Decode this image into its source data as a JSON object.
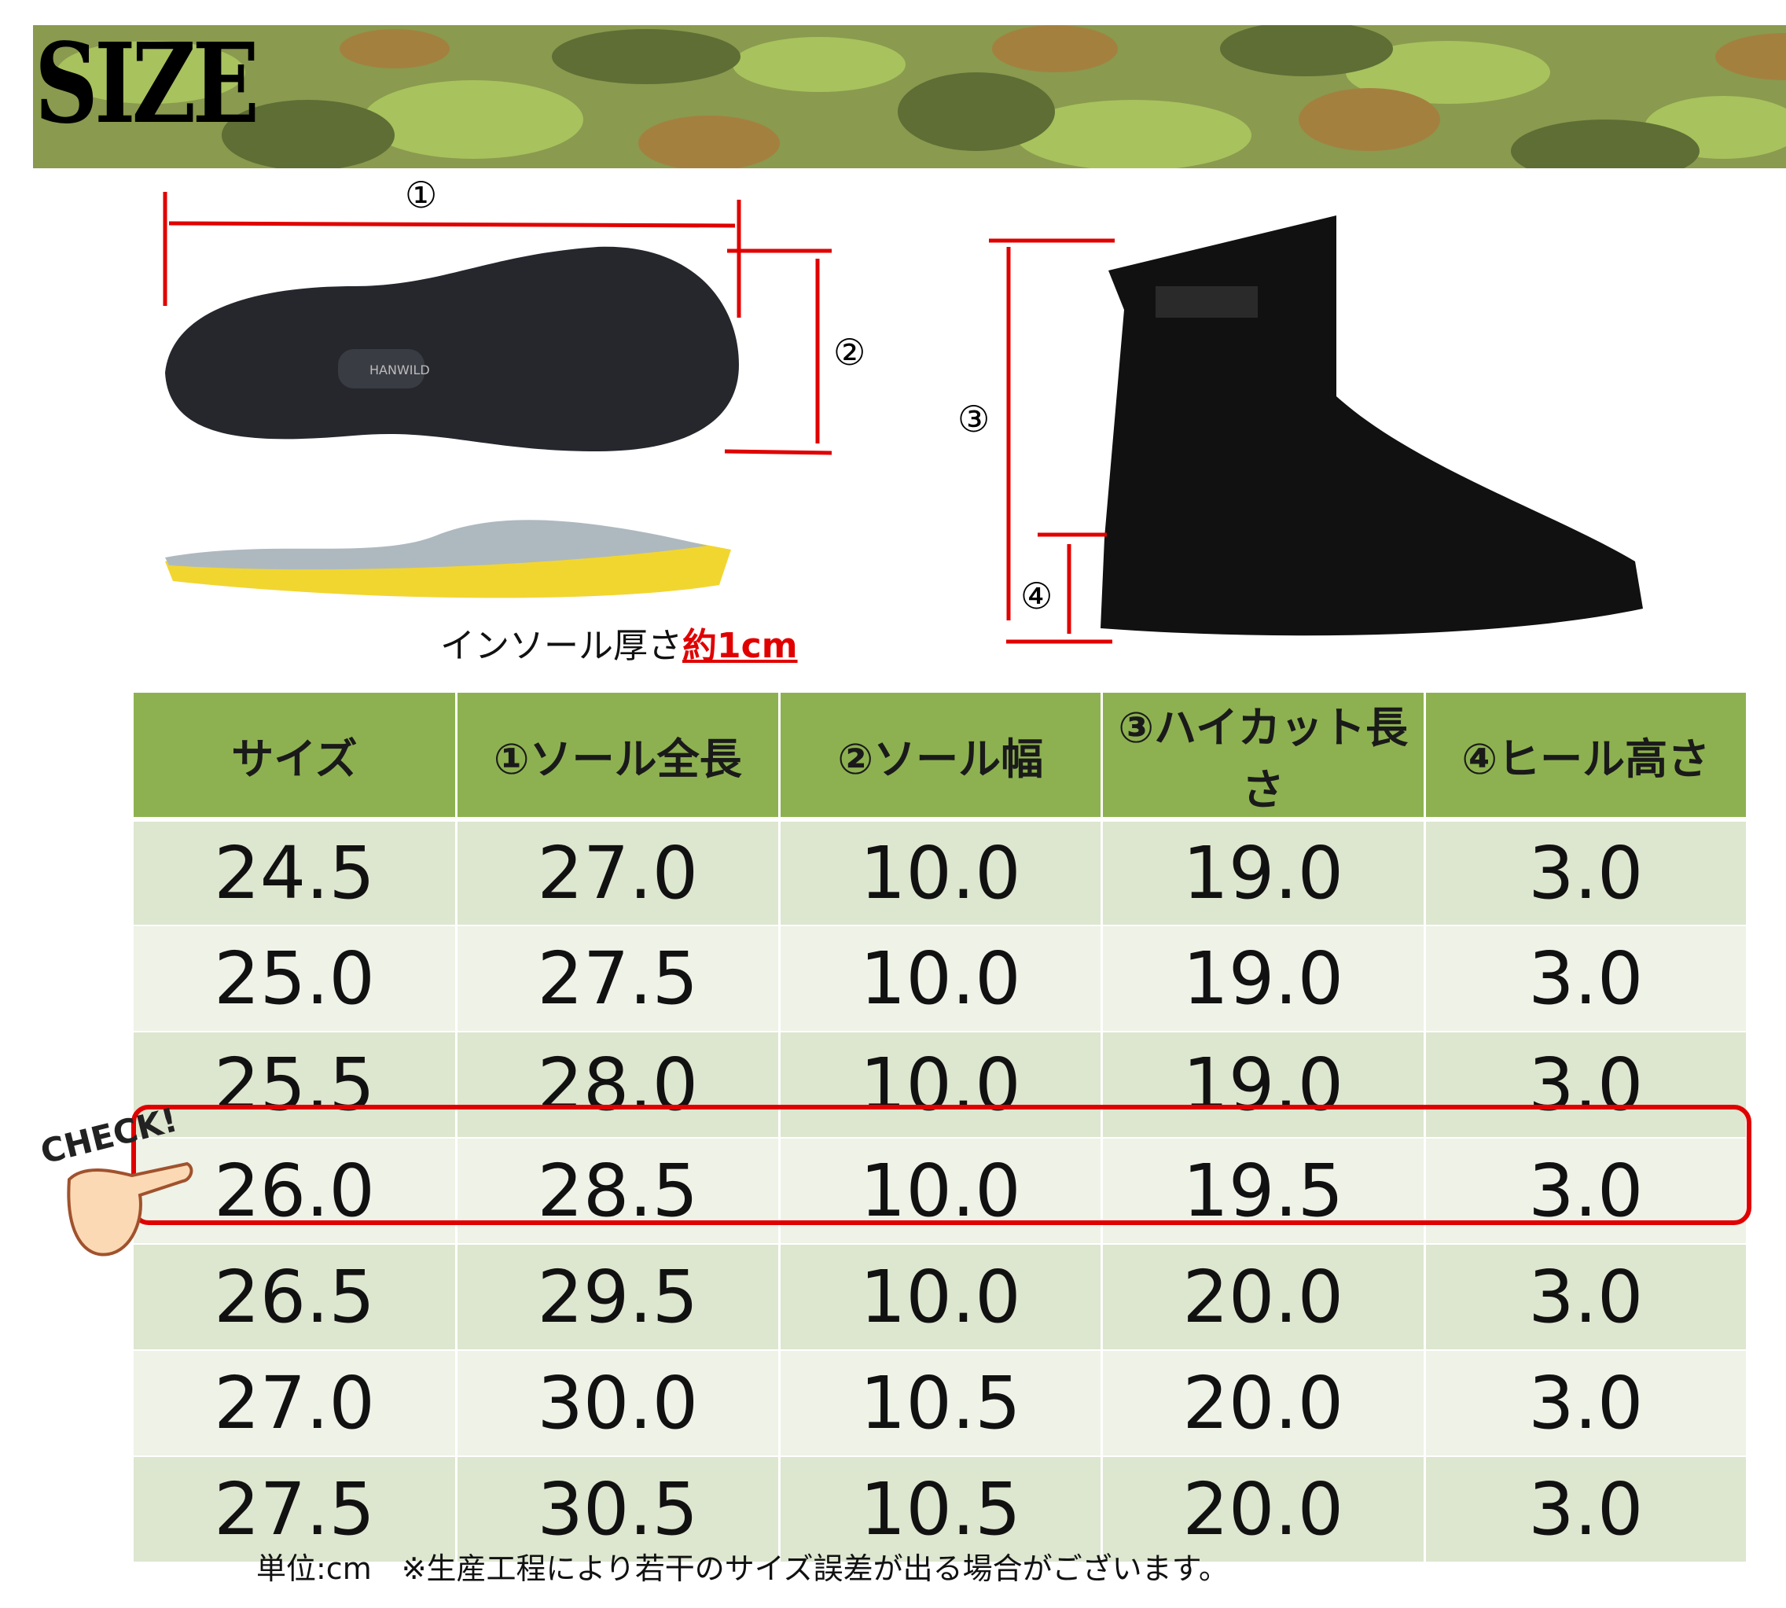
{
  "banner": {
    "title": "SIZE"
  },
  "diagram": {
    "markers": [
      "①",
      "②",
      "③",
      "④"
    ],
    "sole_brand": "HANWILD",
    "insole_caption_prefix": "インソール厚さ",
    "insole_caption_highlight": "約1cm"
  },
  "table": {
    "headers": [
      "サイズ",
      "①ソール全長",
      "②ソール幅",
      "③ハイカット長さ",
      "④ヒール高さ"
    ],
    "rows": [
      [
        "24.5",
        "27.0",
        "10.0",
        "19.0",
        "3.0"
      ],
      [
        "25.0",
        "27.5",
        "10.0",
        "19.0",
        "3.0"
      ],
      [
        "25.5",
        "28.0",
        "10.0",
        "19.0",
        "3.0"
      ],
      [
        "26.0",
        "28.5",
        "10.0",
        "19.5",
        "3.0"
      ],
      [
        "26.5",
        "29.5",
        "10.0",
        "20.0",
        "3.0"
      ],
      [
        "27.0",
        "30.0",
        "10.5",
        "20.0",
        "3.0"
      ],
      [
        "27.5",
        "30.5",
        "10.5",
        "20.0",
        "3.0"
      ]
    ],
    "highlighted_size": "26.0",
    "check_label": "CHECK!"
  },
  "footer": {
    "note": "単位:cm　※生産工程により若干のサイズ誤差が出る場合がございます。"
  },
  "colors": {
    "header": "#8db150",
    "row_odd": "#dde6cf",
    "row_even": "#eef2e7",
    "highlight": "#e00000",
    "measure_lines": "#e00000"
  }
}
